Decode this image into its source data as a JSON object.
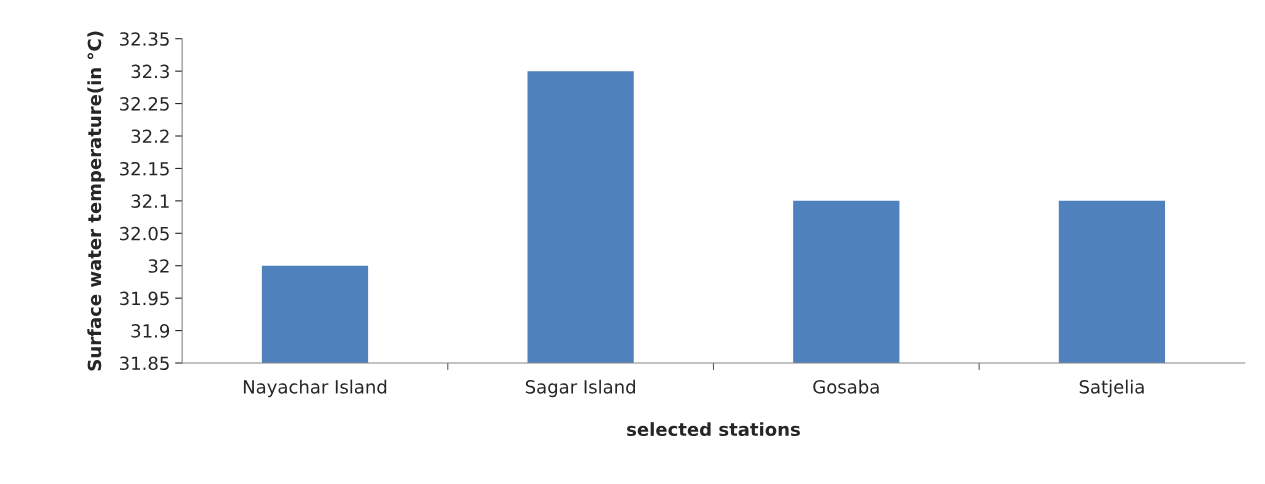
{
  "chart_data": {
    "type": "bar",
    "xlabel": "selected stations",
    "ylabel": "Surface water temperature(in °C)",
    "categories": [
      "Nayachar Island",
      "Sagar Island",
      "Gosaba",
      "Satjelia"
    ],
    "values": [
      32,
      32.3,
      32.1,
      32.1
    ],
    "color": "#4f81bd",
    "ylim": [
      31.85,
      32.35
    ],
    "yticks": [
      31.85,
      31.9,
      31.95,
      32,
      32.05,
      32.1,
      32.15,
      32.2,
      32.25,
      32.3,
      32.35
    ],
    "grid": false,
    "legend": false
  }
}
